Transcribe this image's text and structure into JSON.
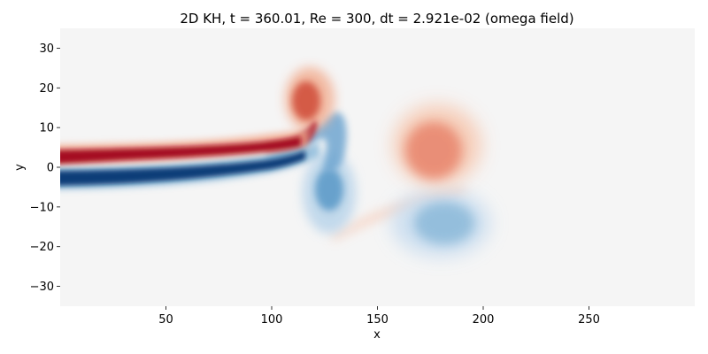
{
  "chart_data": {
    "type": "heatmap",
    "title": "2D KH, t =  360.01, Re = 300, dt = 2.921e-02 (omega field)",
    "xlabel": "x",
    "ylabel": "y",
    "xlim": [
      0,
      300
    ],
    "ylim": [
      -35,
      35
    ],
    "xticks": [
      50,
      100,
      150,
      200,
      250
    ],
    "yticks": [
      -30,
      -20,
      -10,
      0,
      10,
      20,
      30
    ],
    "xtick_labels": [
      "50",
      "100",
      "150",
      "200",
      "250"
    ],
    "ytick_labels": [
      "−30",
      "−20",
      "−10",
      "0",
      "10",
      "20",
      "30"
    ],
    "colormap": "RdBu_r",
    "background_color": "#f5f5f5",
    "grid": false,
    "vorticity_features": [
      {
        "shape": "band",
        "x_range": [
          0,
          112
        ],
        "y_center": 2.5,
        "value": 1.0
      },
      {
        "shape": "band",
        "x_range": [
          0,
          112
        ],
        "y_center": -2.5,
        "value": -1.0
      },
      {
        "shape": "blob",
        "x": 117,
        "y": 17,
        "value": 0.75
      },
      {
        "shape": "blob",
        "x": 128,
        "y": -6,
        "value": -0.55
      },
      {
        "shape": "blob",
        "x": 176,
        "y": 5,
        "value": 0.5
      },
      {
        "shape": "blob",
        "x": 182,
        "y": -14,
        "value": -0.45
      },
      {
        "shape": "filament",
        "x_range": [
          128,
          180
        ],
        "y_range": [
          -17,
          -3
        ],
        "value": 0.2
      }
    ]
  }
}
